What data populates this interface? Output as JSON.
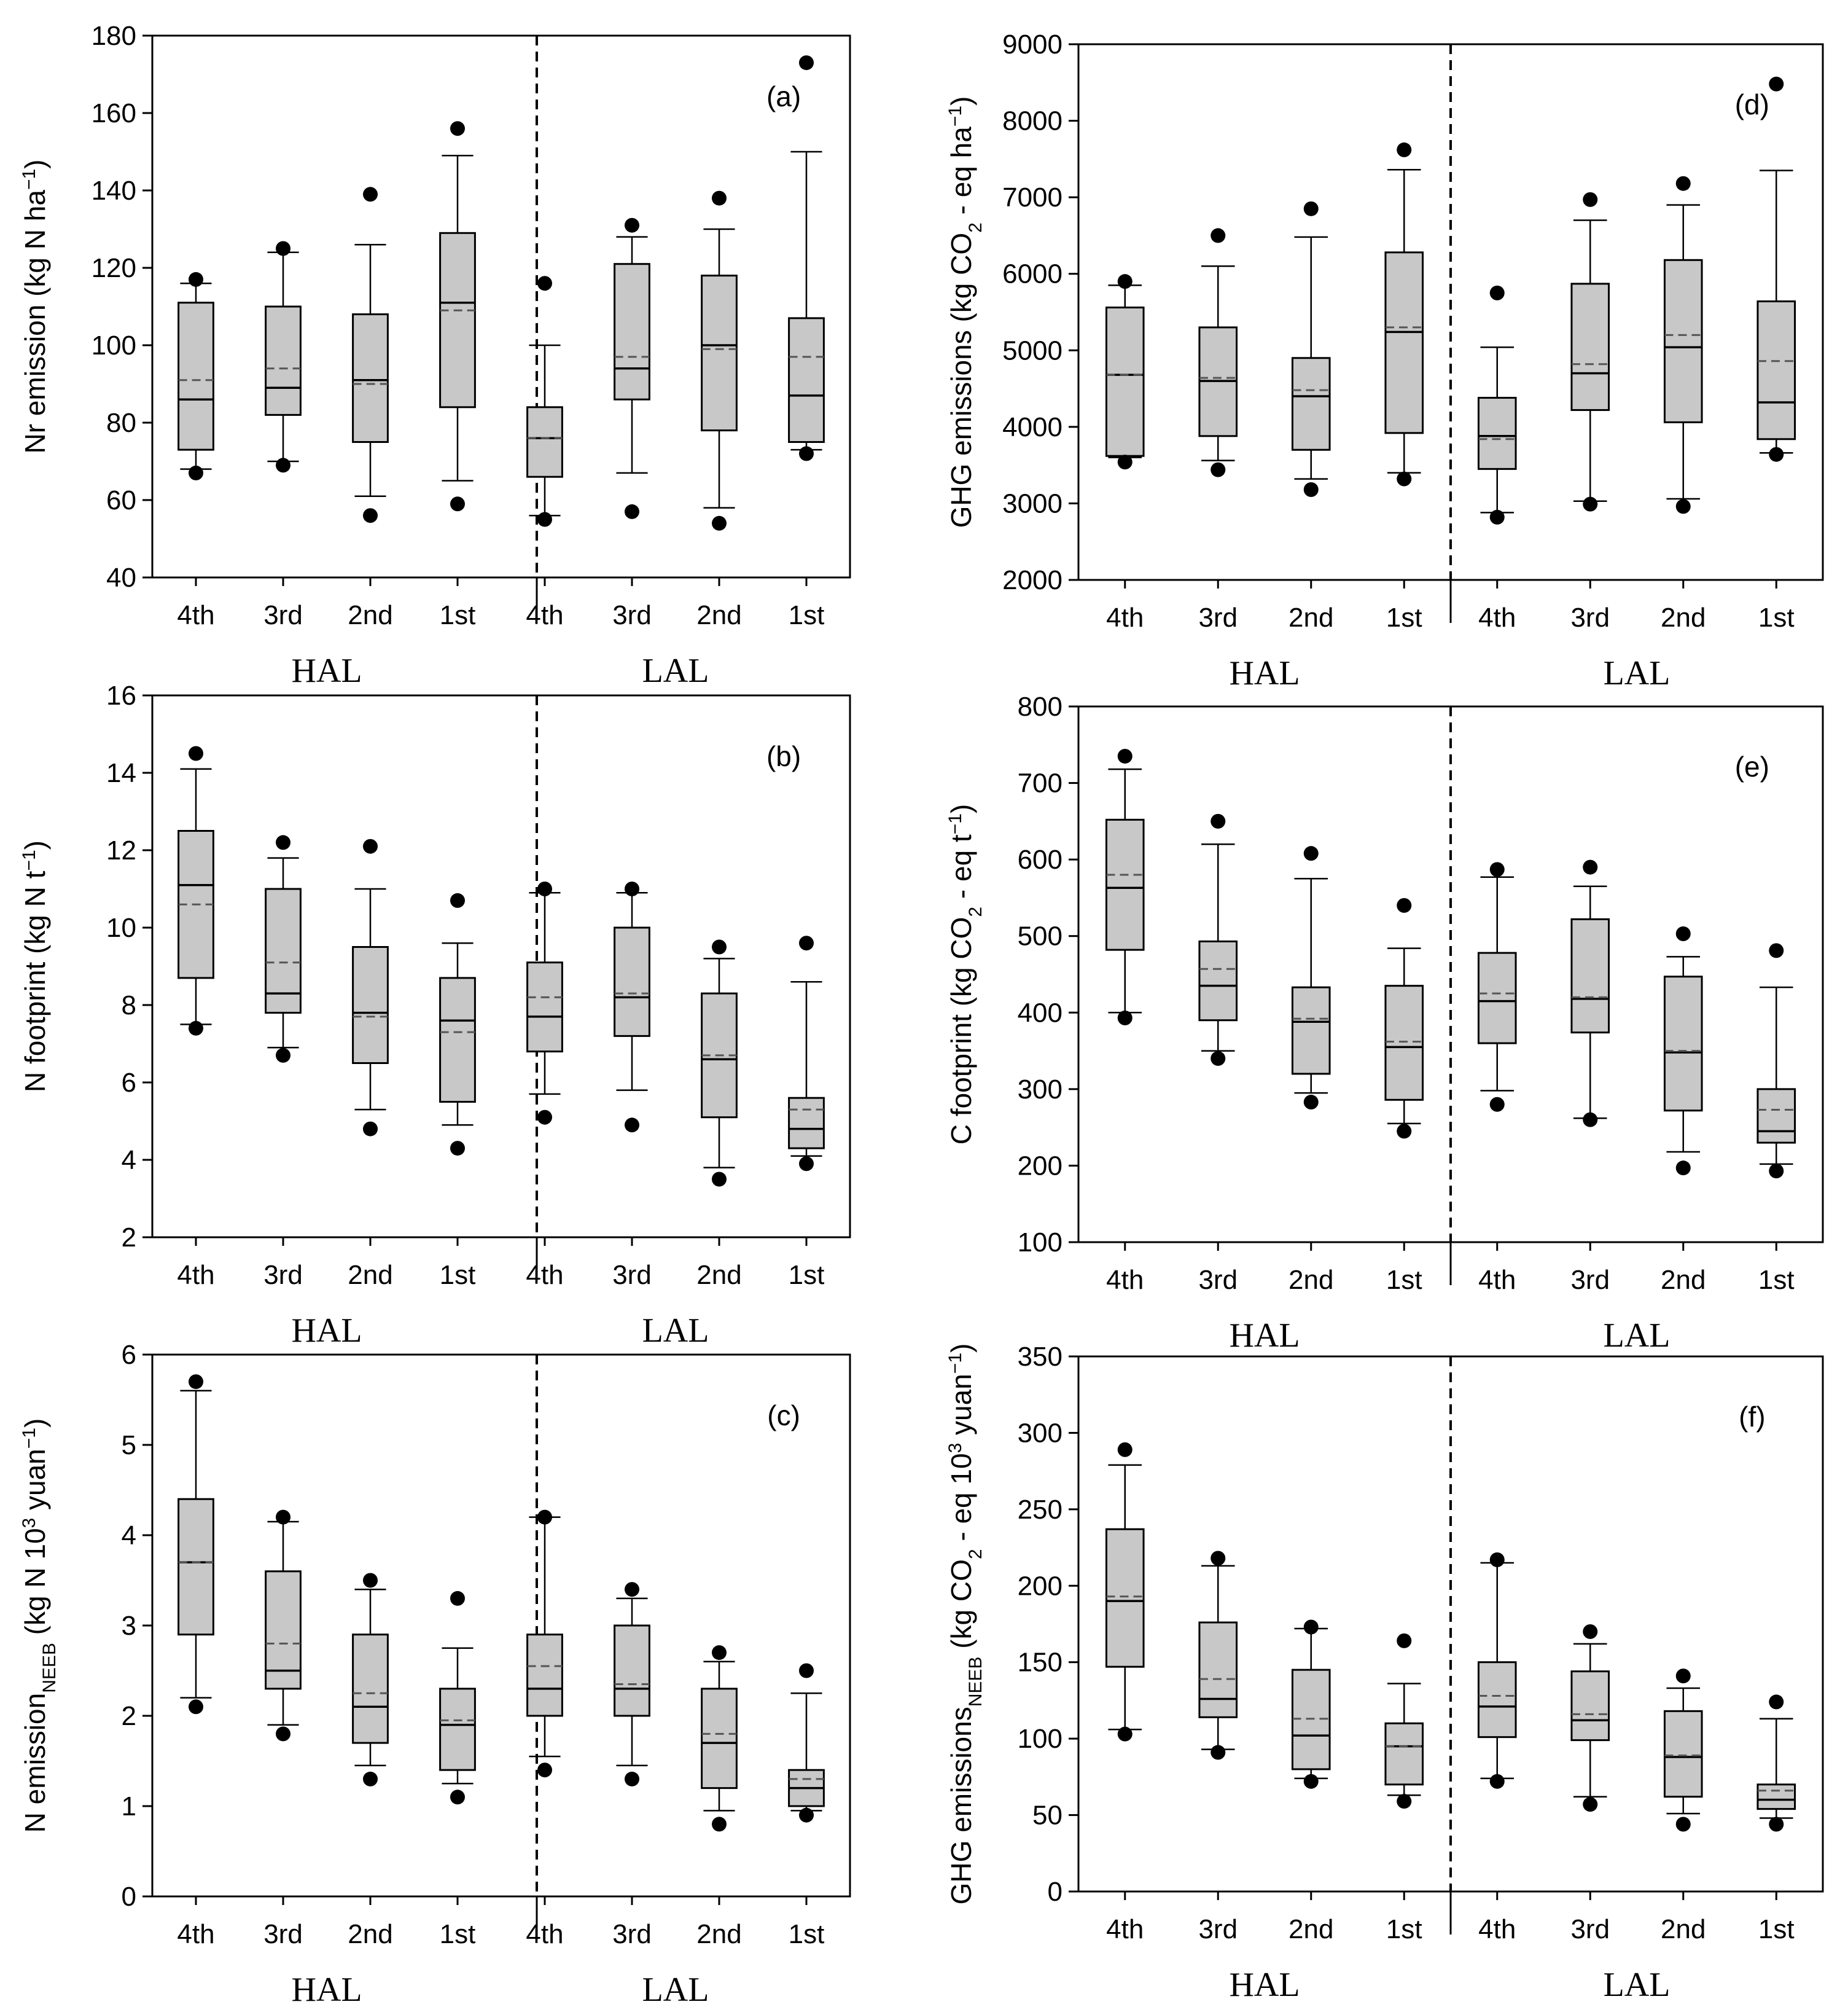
{
  "chart_data": [
    {
      "type": "box",
      "panel": "(a)",
      "ylabel": "Nr emission (kg N ha⁻¹)",
      "ylim": [
        40,
        180
      ],
      "yticks": [
        40,
        60,
        80,
        100,
        120,
        140,
        160,
        180
      ],
      "groups": [
        "HAL",
        "LAL"
      ],
      "categories": [
        "4th",
        "3rd",
        "2nd",
        "1st"
      ],
      "boxes": [
        {
          "group": "HAL",
          "category": "4th",
          "wlo": 68,
          "q1": 73,
          "median": 86,
          "mean": 91,
          "q3": 111,
          "whi": 116,
          "outliers": [
            67,
            117
          ]
        },
        {
          "group": "HAL",
          "category": "3rd",
          "wlo": 70,
          "q1": 82,
          "median": 89,
          "mean": 94,
          "q3": 110,
          "whi": 124,
          "outliers": [
            69,
            125
          ]
        },
        {
          "group": "HAL",
          "category": "2nd",
          "wlo": 61,
          "q1": 75,
          "median": 91,
          "mean": 90,
          "q3": 108,
          "whi": 126,
          "outliers": [
            56,
            139
          ]
        },
        {
          "group": "HAL",
          "category": "1st",
          "wlo": 65,
          "q1": 84,
          "median": 111,
          "mean": 109,
          "q3": 129,
          "whi": 149,
          "outliers": [
            59,
            156
          ]
        },
        {
          "group": "LAL",
          "category": "4th",
          "wlo": 56,
          "q1": 66,
          "median": 76,
          "mean": 76,
          "q3": 84,
          "whi": 100,
          "outliers": [
            55,
            116
          ]
        },
        {
          "group": "LAL",
          "category": "3rd",
          "wlo": 67,
          "q1": 86,
          "median": 94,
          "mean": 97,
          "q3": 121,
          "whi": 128,
          "outliers": [
            57,
            131
          ]
        },
        {
          "group": "LAL",
          "category": "2nd",
          "wlo": 58,
          "q1": 78,
          "median": 100,
          "mean": 99,
          "q3": 118,
          "whi": 130,
          "outliers": [
            54,
            138
          ]
        },
        {
          "group": "LAL",
          "category": "1st",
          "wlo": 73,
          "q1": 75,
          "median": 87,
          "mean": 97,
          "q3": 107,
          "whi": 150,
          "outliers": [
            72,
            173
          ]
        }
      ]
    },
    {
      "type": "box",
      "panel": "(b)",
      "ylabel": "N footprint (kg N t⁻¹)",
      "ylim": [
        2,
        16
      ],
      "yticks": [
        2,
        4,
        6,
        8,
        10,
        12,
        14,
        16
      ],
      "groups": [
        "HAL",
        "LAL"
      ],
      "categories": [
        "4th",
        "3rd",
        "2nd",
        "1st"
      ],
      "boxes": [
        {
          "group": "HAL",
          "category": "4th",
          "wlo": 7.5,
          "q1": 8.7,
          "median": 11.1,
          "mean": 10.6,
          "q3": 12.5,
          "whi": 14.1,
          "outliers": [
            7.4,
            14.5
          ]
        },
        {
          "group": "HAL",
          "category": "3rd",
          "wlo": 6.9,
          "q1": 7.8,
          "median": 8.3,
          "mean": 9.1,
          "q3": 11.0,
          "whi": 11.8,
          "outliers": [
            6.7,
            12.2
          ]
        },
        {
          "group": "HAL",
          "category": "2nd",
          "wlo": 5.3,
          "q1": 6.5,
          "median": 7.8,
          "mean": 7.7,
          "q3": 9.5,
          "whi": 11.0,
          "outliers": [
            4.8,
            12.1
          ]
        },
        {
          "group": "HAL",
          "category": "1st",
          "wlo": 4.9,
          "q1": 5.5,
          "median": 7.6,
          "mean": 7.3,
          "q3": 8.7,
          "whi": 9.6,
          "outliers": [
            4.3,
            10.7
          ]
        },
        {
          "group": "LAL",
          "category": "4th",
          "wlo": 5.7,
          "q1": 6.8,
          "median": 7.7,
          "mean": 8.2,
          "q3": 9.1,
          "whi": 10.9,
          "outliers": [
            5.1,
            11.0
          ]
        },
        {
          "group": "LAL",
          "category": "3rd",
          "wlo": 5.8,
          "q1": 7.2,
          "median": 8.2,
          "mean": 8.3,
          "q3": 10.0,
          "whi": 10.9,
          "outliers": [
            4.9,
            11.0
          ]
        },
        {
          "group": "LAL",
          "category": "2nd",
          "wlo": 3.8,
          "q1": 5.1,
          "median": 6.6,
          "mean": 6.7,
          "q3": 8.3,
          "whi": 9.2,
          "outliers": [
            3.5,
            9.5
          ]
        },
        {
          "group": "LAL",
          "category": "1st",
          "wlo": 4.1,
          "q1": 4.3,
          "median": 4.8,
          "mean": 5.3,
          "q3": 5.6,
          "whi": 8.6,
          "outliers": [
            3.9,
            9.6
          ]
        }
      ]
    },
    {
      "type": "box",
      "panel": "(c)",
      "ylabel": "N emission NEEB (kg N 10³ yuan⁻¹)",
      "ylim": [
        0,
        6
      ],
      "yticks": [
        0,
        1,
        2,
        3,
        4,
        5,
        6
      ],
      "groups": [
        "HAL",
        "LAL"
      ],
      "categories": [
        "4th",
        "3rd",
        "2nd",
        "1st"
      ],
      "boxes": [
        {
          "group": "HAL",
          "category": "4th",
          "wlo": 2.2,
          "q1": 2.9,
          "median": 3.7,
          "mean": 3.7,
          "q3": 4.4,
          "whi": 5.6,
          "outliers": [
            2.1,
            5.7
          ]
        },
        {
          "group": "HAL",
          "category": "3rd",
          "wlo": 1.9,
          "q1": 2.3,
          "median": 2.5,
          "mean": 2.8,
          "q3": 3.6,
          "whi": 4.15,
          "outliers": [
            1.8,
            4.2
          ]
        },
        {
          "group": "HAL",
          "category": "2nd",
          "wlo": 1.45,
          "q1": 1.7,
          "median": 2.1,
          "mean": 2.25,
          "q3": 2.9,
          "whi": 3.4,
          "outliers": [
            1.3,
            3.5
          ]
        },
        {
          "group": "HAL",
          "category": "1st",
          "wlo": 1.25,
          "q1": 1.4,
          "median": 1.9,
          "mean": 1.95,
          "q3": 2.3,
          "whi": 2.75,
          "outliers": [
            1.1,
            3.3
          ]
        },
        {
          "group": "LAL",
          "category": "4th",
          "wlo": 1.55,
          "q1": 2.0,
          "median": 2.3,
          "mean": 2.55,
          "q3": 2.9,
          "whi": 4.2,
          "outliers": [
            1.4,
            4.2
          ]
        },
        {
          "group": "LAL",
          "category": "3rd",
          "wlo": 1.45,
          "q1": 2.0,
          "median": 2.3,
          "mean": 2.35,
          "q3": 3.0,
          "whi": 3.3,
          "outliers": [
            1.3,
            3.4
          ]
        },
        {
          "group": "LAL",
          "category": "2nd",
          "wlo": 0.95,
          "q1": 1.2,
          "median": 1.7,
          "mean": 1.8,
          "q3": 2.3,
          "whi": 2.6,
          "outliers": [
            0.8,
            2.7
          ]
        },
        {
          "group": "LAL",
          "category": "1st",
          "wlo": 0.95,
          "q1": 1.0,
          "median": 1.2,
          "mean": 1.3,
          "q3": 1.4,
          "whi": 2.25,
          "outliers": [
            0.9,
            2.5
          ]
        }
      ]
    },
    {
      "type": "box",
      "panel": "(d)",
      "ylabel": "GHG emissions (kg CO₂-eq ha⁻¹)",
      "ylim": [
        2000,
        9000
      ],
      "yticks": [
        2000,
        3000,
        4000,
        5000,
        6000,
        7000,
        8000,
        9000
      ],
      "groups": [
        "HAL",
        "LAL"
      ],
      "categories": [
        "4th",
        "3rd",
        "2nd",
        "1st"
      ],
      "boxes": [
        {
          "group": "HAL",
          "category": "4th",
          "wlo": 3600,
          "q1": 3620,
          "median": 4680,
          "mean": 4680,
          "q3": 5560,
          "whi": 5850,
          "outliers": [
            3540,
            5900
          ]
        },
        {
          "group": "HAL",
          "category": "3rd",
          "wlo": 3560,
          "q1": 3880,
          "median": 4600,
          "mean": 4640,
          "q3": 5300,
          "whi": 6100,
          "outliers": [
            3440,
            6500
          ]
        },
        {
          "group": "HAL",
          "category": "2nd",
          "wlo": 3320,
          "q1": 3700,
          "median": 4400,
          "mean": 4480,
          "q3": 4900,
          "whi": 6480,
          "outliers": [
            3180,
            6850
          ]
        },
        {
          "group": "HAL",
          "category": "1st",
          "wlo": 3400,
          "q1": 3920,
          "median": 5240,
          "mean": 5300,
          "q3": 6280,
          "whi": 7360,
          "outliers": [
            3320,
            7620
          ]
        },
        {
          "group": "LAL",
          "category": "4th",
          "wlo": 2880,
          "q1": 3450,
          "median": 3880,
          "mean": 3840,
          "q3": 4380,
          "whi": 5040,
          "outliers": [
            2820,
            5750
          ]
        },
        {
          "group": "LAL",
          "category": "3rd",
          "wlo": 3030,
          "q1": 4220,
          "median": 4700,
          "mean": 4820,
          "q3": 5870,
          "whi": 6700,
          "outliers": [
            2990,
            6970
          ]
        },
        {
          "group": "LAL",
          "category": "2nd",
          "wlo": 3060,
          "q1": 4060,
          "median": 5040,
          "mean": 5200,
          "q3": 6180,
          "whi": 6900,
          "outliers": [
            2960,
            7180
          ]
        },
        {
          "group": "LAL",
          "category": "1st",
          "wlo": 3660,
          "q1": 3840,
          "median": 4320,
          "mean": 4860,
          "q3": 5640,
          "whi": 7350,
          "outliers": [
            3640,
            8480
          ]
        }
      ]
    },
    {
      "type": "box",
      "panel": "(e)",
      "ylabel": "C footprint (kg CO₂-eq t⁻¹)",
      "ylim": [
        100,
        800
      ],
      "yticks": [
        100,
        200,
        300,
        400,
        500,
        600,
        700,
        800
      ],
      "groups": [
        "HAL",
        "LAL"
      ],
      "categories": [
        "4th",
        "3rd",
        "2nd",
        "1st"
      ],
      "boxes": [
        {
          "group": "HAL",
          "category": "4th",
          "wlo": 400,
          "q1": 482,
          "median": 563,
          "mean": 580,
          "q3": 652,
          "whi": 718,
          "outliers": [
            393,
            735
          ]
        },
        {
          "group": "HAL",
          "category": "3rd",
          "wlo": 350,
          "q1": 390,
          "median": 435,
          "mean": 457,
          "q3": 493,
          "whi": 620,
          "outliers": [
            340,
            650
          ]
        },
        {
          "group": "HAL",
          "category": "2nd",
          "wlo": 295,
          "q1": 320,
          "median": 388,
          "mean": 392,
          "q3": 433,
          "whi": 575,
          "outliers": [
            283,
            608
          ]
        },
        {
          "group": "HAL",
          "category": "1st",
          "wlo": 255,
          "q1": 286,
          "median": 355,
          "mean": 362,
          "q3": 435,
          "whi": 484,
          "outliers": [
            245,
            540
          ]
        },
        {
          "group": "LAL",
          "category": "4th",
          "wlo": 298,
          "q1": 360,
          "median": 415,
          "mean": 425,
          "q3": 478,
          "whi": 577,
          "outliers": [
            280,
            587
          ]
        },
        {
          "group": "LAL",
          "category": "3rd",
          "wlo": 262,
          "q1": 374,
          "median": 418,
          "mean": 420,
          "q3": 522,
          "whi": 565,
          "outliers": [
            260,
            590
          ]
        },
        {
          "group": "LAL",
          "category": "2nd",
          "wlo": 218,
          "q1": 272,
          "median": 348,
          "mean": 350,
          "q3": 447,
          "whi": 473,
          "outliers": [
            197,
            503
          ]
        },
        {
          "group": "LAL",
          "category": "1st",
          "wlo": 202,
          "q1": 230,
          "median": 245,
          "mean": 273,
          "q3": 300,
          "whi": 433,
          "outliers": [
            193,
            481
          ]
        }
      ]
    },
    {
      "type": "box",
      "panel": "(f)",
      "ylabel": "GHG emissions NEEB (kg CO₂-eq 10³ yuan⁻¹)",
      "ylim": [
        0,
        350
      ],
      "yticks": [
        0,
        50,
        100,
        150,
        200,
        250,
        300,
        350
      ],
      "groups": [
        "HAL",
        "LAL"
      ],
      "categories": [
        "4th",
        "3rd",
        "2nd",
        "1st"
      ],
      "boxes": [
        {
          "group": "HAL",
          "category": "4th",
          "wlo": 106,
          "q1": 147,
          "median": 190,
          "mean": 193,
          "q3": 237,
          "whi": 279,
          "outliers": [
            103,
            289
          ]
        },
        {
          "group": "HAL",
          "category": "3rd",
          "wlo": 93,
          "q1": 114,
          "median": 126,
          "mean": 139,
          "q3": 176,
          "whi": 213,
          "outliers": [
            91,
            218
          ]
        },
        {
          "group": "HAL",
          "category": "2nd",
          "wlo": 74,
          "q1": 80,
          "median": 102,
          "mean": 113,
          "q3": 145,
          "whi": 172,
          "outliers": [
            72,
            173
          ]
        },
        {
          "group": "HAL",
          "category": "1st",
          "wlo": 63,
          "q1": 70,
          "median": 95,
          "mean": 95,
          "q3": 110,
          "whi": 136,
          "outliers": [
            59,
            164
          ]
        },
        {
          "group": "LAL",
          "category": "4th",
          "wlo": 74,
          "q1": 101,
          "median": 121,
          "mean": 128,
          "q3": 150,
          "whi": 215,
          "outliers": [
            72,
            217
          ]
        },
        {
          "group": "LAL",
          "category": "3rd",
          "wlo": 62,
          "q1": 99,
          "median": 112,
          "mean": 116,
          "q3": 144,
          "whi": 162,
          "outliers": [
            57,
            170
          ]
        },
        {
          "group": "LAL",
          "category": "2nd",
          "wlo": 51,
          "q1": 62,
          "median": 88,
          "mean": 89,
          "q3": 118,
          "whi": 133,
          "outliers": [
            44,
            141
          ]
        },
        {
          "group": "LAL",
          "category": "1st",
          "wlo": 48,
          "q1": 54,
          "median": 60,
          "mean": 66,
          "q3": 70,
          "whi": 113,
          "outliers": [
            44,
            124
          ]
        }
      ]
    }
  ]
}
